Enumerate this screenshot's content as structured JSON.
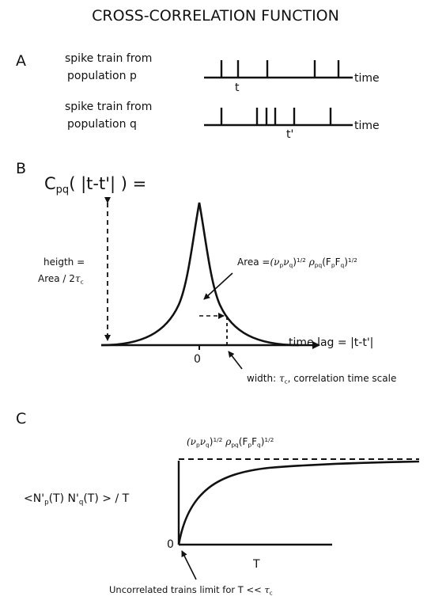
{
  "title": "CROSS-CORRELATION FUNCTION",
  "panelA": {
    "label": "A",
    "train_p_line1": "spike train from",
    "train_p_line2": "population p",
    "train_q_line1": "spike train from",
    "train_q_line2": "population q",
    "mark_t": "t",
    "mark_tprime": "t'",
    "time_p": "time",
    "time_q": "time"
  },
  "panelB": {
    "label": "B",
    "ylabel_C": "C",
    "ylabel_sub": "pq",
    "ylabel_rest": "( |t-t'| ) =",
    "height_line1": "heigth =",
    "height_line2a": "Area / 2",
    "tau": "τ",
    "sub_c": "c",
    "area_prefix": "Area =",
    "area_nu": "(ν",
    "sub_p": "p",
    "area_nu2": "ν",
    "sub_q": "q",
    "area_close": ")",
    "half": "1/2",
    "rho": "ρ",
    "sub_pq": "pq",
    "F_open": "(F",
    "F_mid": "F",
    "x_zero": "0",
    "x_label": "time lag = |t-t'|",
    "width_prefix": "width: ",
    "width_suffix": ", correlation time scale"
  },
  "panelC": {
    "label": "C",
    "ylabel_a": "<N'",
    "ylabel_b": "(T) N'",
    "ylabel_c": "(T) > / T",
    "origin": "0",
    "xlabel": "T",
    "note_prefix": "Uncorrelated trains limit for  T << ",
    "asym_nu": "(ν",
    "asym_nu2": "ν",
    "asym_close": ")",
    "asym_rho": "ρ",
    "asym_F_open": "(F",
    "asym_F_mid": "F"
  }
}
